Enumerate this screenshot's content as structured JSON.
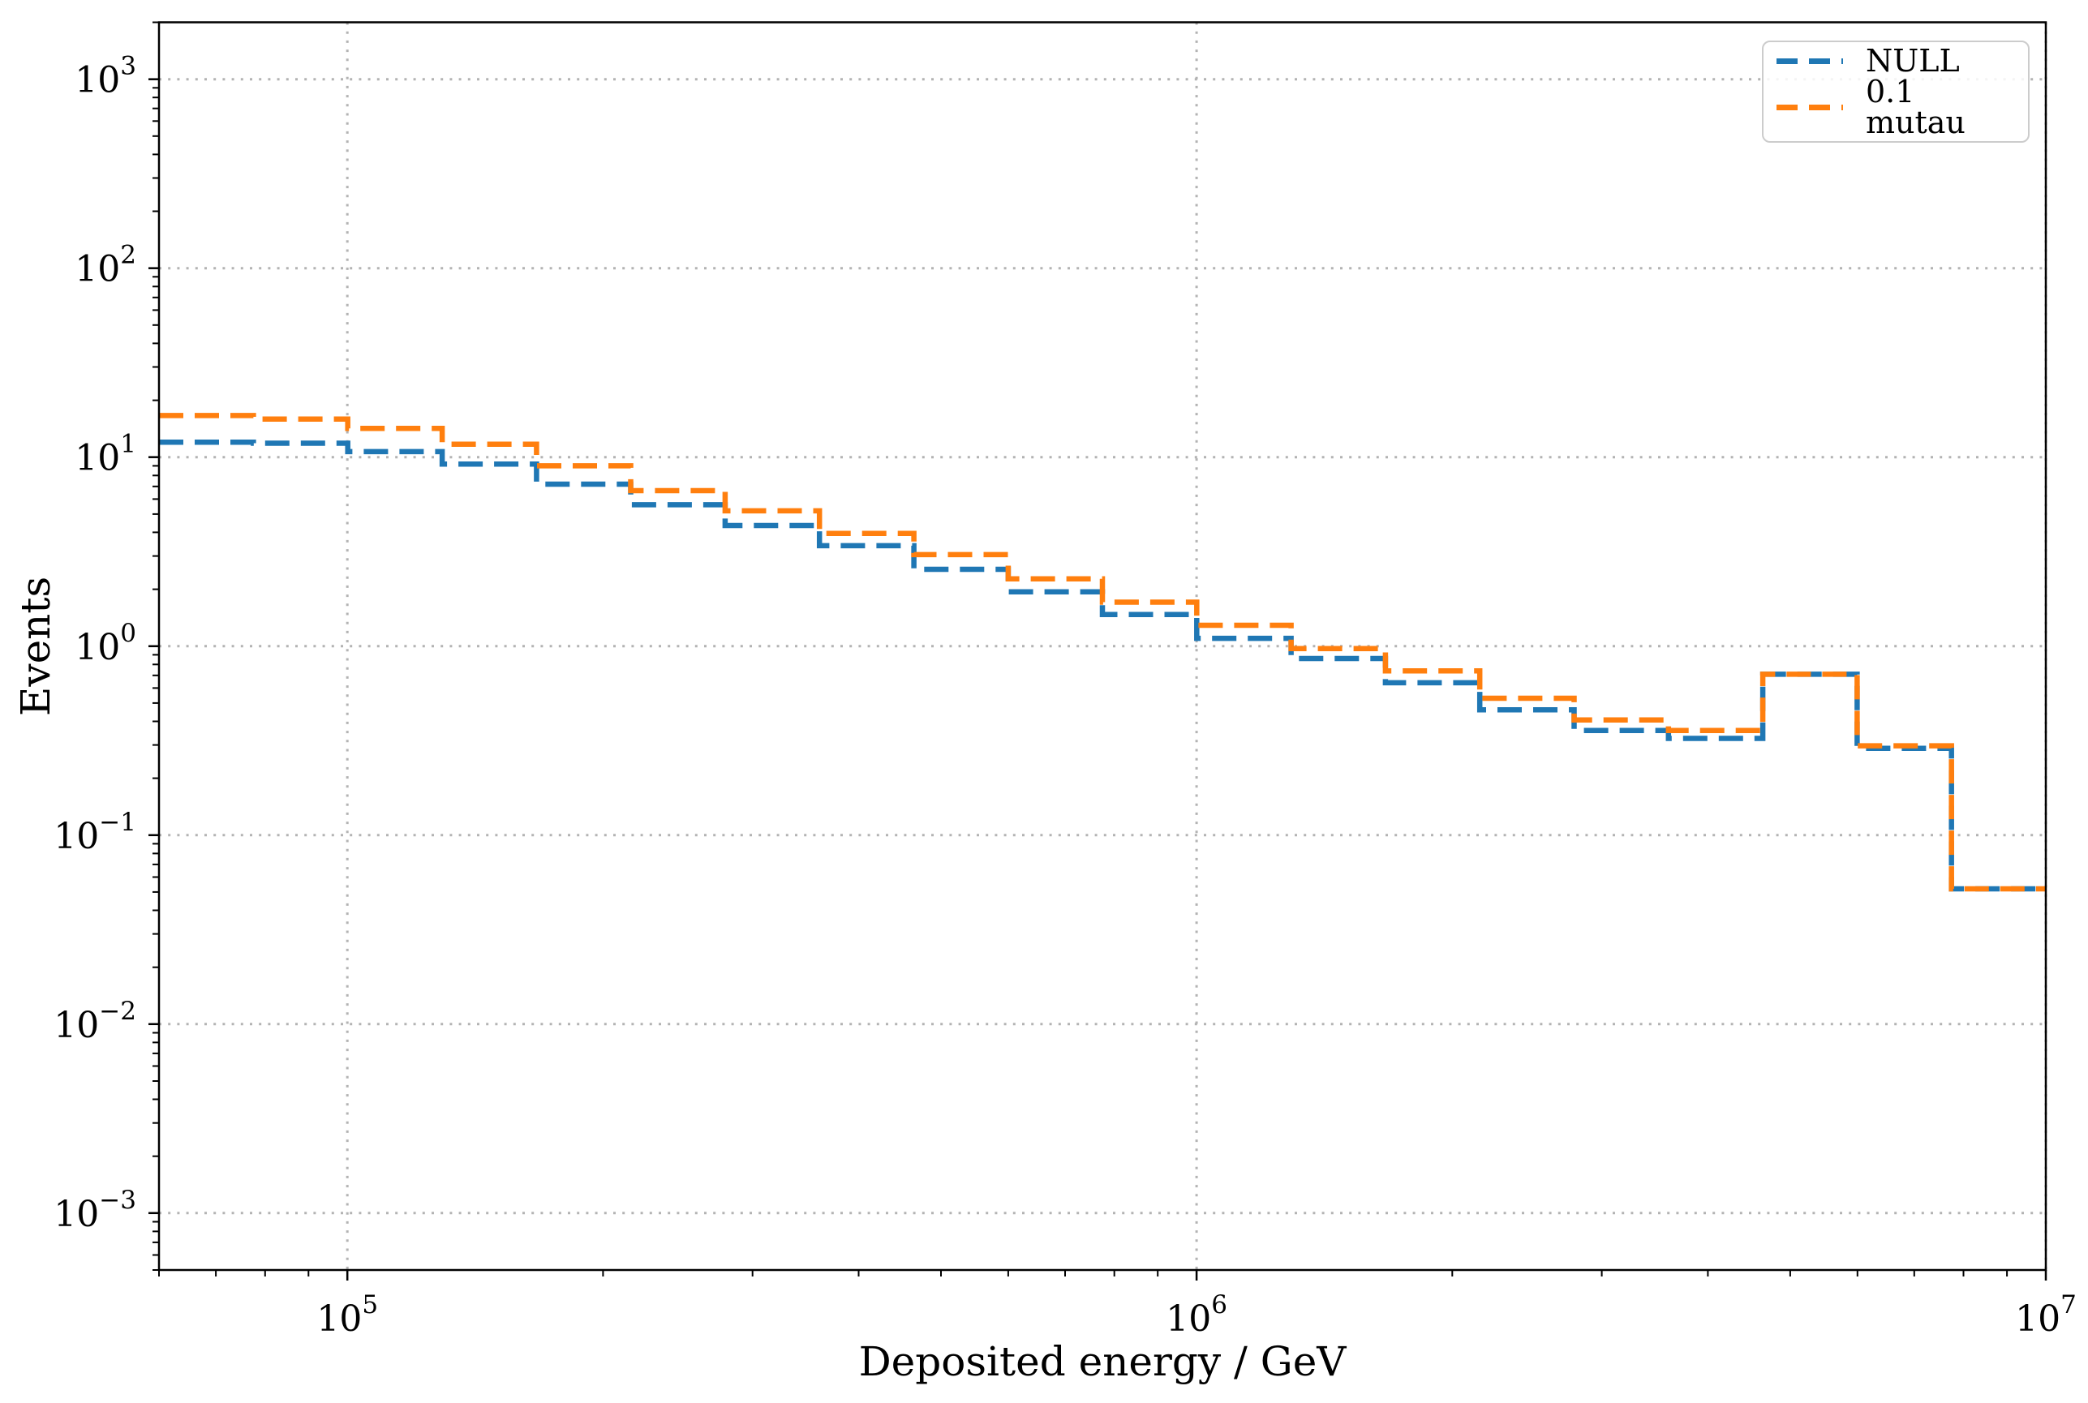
{
  "chart_data": {
    "type": "step-histogram",
    "title": "",
    "xlabel": "Deposited energy / GeV",
    "ylabel": "Events",
    "xscale": "log",
    "yscale": "log",
    "xlim": [
      60000,
      10000000
    ],
    "ylim": [
      0.0005,
      2000
    ],
    "x_tick_exponents": [
      5,
      6,
      7
    ],
    "y_tick_exponents": [
      -3,
      -2,
      -1,
      0,
      1,
      2,
      3
    ],
    "grid": {
      "which": "major",
      "style": "dotted",
      "color": "#b3b3b3"
    },
    "bin_edges": [
      60000,
      77500,
      100100,
      129300,
      167000,
      215600,
      278500,
      359700,
      464600,
      600000,
      774600,
      1000400,
      1292100,
      1668700,
      2155100,
      2783400,
      3594700,
      4642600,
      5996000,
      7743700,
      10000000
    ],
    "series": [
      {
        "name": "NULL",
        "color": "#1f77b4",
        "linestyle": "dashed",
        "values": [
          12.0,
          11.85,
          10.7,
          9.2,
          7.2,
          5.6,
          4.35,
          3.4,
          2.55,
          1.94,
          1.47,
          1.1,
          0.86,
          0.64,
          0.46,
          0.358,
          0.325,
          0.71,
          0.288,
          0.052
        ]
      },
      {
        "name": "0.1 mutau",
        "color": "#ff7f0e",
        "linestyle": "dashed",
        "values": [
          16.6,
          15.9,
          14.2,
          11.7,
          9.0,
          6.65,
          5.2,
          3.95,
          3.05,
          2.27,
          1.71,
          1.29,
          0.97,
          0.74,
          0.53,
          0.407,
          0.358,
          0.71,
          0.297,
          0.052
        ]
      }
    ],
    "legend": {
      "position": "upper-right",
      "labels": [
        "NULL",
        "0.1 mutau"
      ]
    }
  }
}
